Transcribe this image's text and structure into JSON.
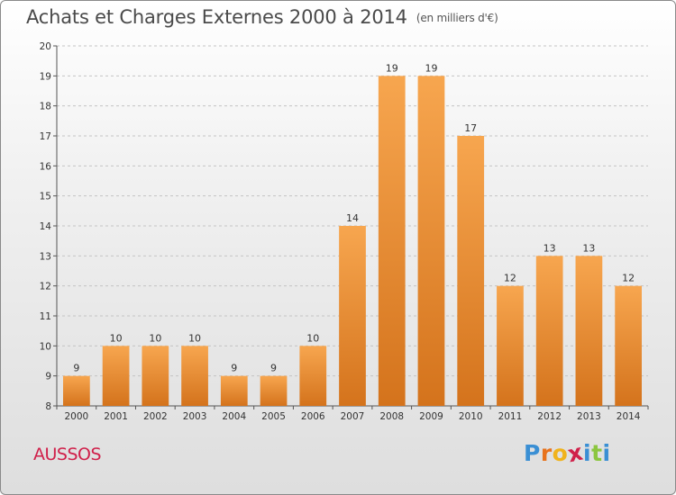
{
  "header": {
    "title": "Achats et Charges Externes 2000 à 2014",
    "subtitle": "(en milliers d'€)"
  },
  "footer": {
    "commune": "AUSSOS",
    "brand": "Proxiti"
  },
  "colors": {
    "bar_light": "#f7a64f",
    "bar_dark": "#d4731c",
    "commune": "#d0204a",
    "brand_letters": [
      "#3a8fd4",
      "#e8731c",
      "#f0b31c",
      "#d0204a",
      "#3a8fd4",
      "#8cc63f",
      "#3a8fd4"
    ]
  },
  "chart_data": {
    "type": "bar",
    "title": "Achats et Charges Externes 2000 à 2014",
    "subtitle": "(en milliers d'€)",
    "categories": [
      "2000",
      "2001",
      "2002",
      "2003",
      "2004",
      "2005",
      "2006",
      "2007",
      "2008",
      "2009",
      "2010",
      "2011",
      "2012",
      "2013",
      "2014"
    ],
    "values": [
      9,
      10,
      10,
      10,
      9,
      9,
      10,
      14,
      19,
      19,
      17,
      12,
      13,
      13,
      12
    ],
    "value_labels": [
      "9",
      "10",
      "10",
      "10",
      "9",
      "9",
      "10",
      "14",
      "19",
      "19",
      "17",
      "12",
      "13",
      "13",
      "12"
    ],
    "ylim": [
      8,
      20
    ],
    "yticks": [
      8,
      9,
      10,
      11,
      12,
      13,
      14,
      15,
      16,
      17,
      18,
      19,
      20
    ],
    "grid": true,
    "xlabel": "",
    "ylabel": ""
  }
}
